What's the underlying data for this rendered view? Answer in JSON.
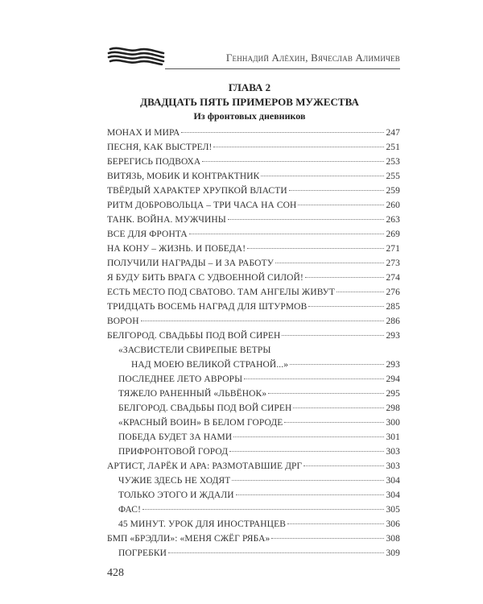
{
  "header": {
    "running_head": "Геннадий Алёхин, Вячеслав Алимичев",
    "logo_icon": "st-george-ribbon-icon"
  },
  "chapter": {
    "number": "ГЛАВА 2",
    "title": "ДВАДЦАТЬ ПЯТЬ ПРИМЕРОВ МУЖЕСТВА",
    "subtitle": "Из фронтовых дневников"
  },
  "toc": [
    {
      "title": "МОНАХ И МИРА",
      "page": "247",
      "level": 0
    },
    {
      "title": "ПЕСНЯ, КАК ВЫСТРЕЛ!",
      "page": "251",
      "level": 0
    },
    {
      "title": "БЕРЕГИСЬ ПОДВОХА",
      "page": "253",
      "level": 0
    },
    {
      "title": "ВИТЯЗЬ, МОБИК И КОНТРАКТНИК",
      "page": "255",
      "level": 0
    },
    {
      "title": "ТВЁРДЫЙ ХАРАКТЕР ХРУПКОЙ ВЛАСТИ",
      "page": "259",
      "level": 0
    },
    {
      "title": "РИТМ ДОБРОВОЛЬЦА – ТРИ ЧАСА НА СОН",
      "page": "260",
      "level": 0
    },
    {
      "title": "ТАНК. ВОЙНА. МУЖЧИНЫ",
      "page": "263",
      "level": 0
    },
    {
      "title": "ВСЕ ДЛЯ ФРОНТА",
      "page": "269",
      "level": 0
    },
    {
      "title": "НА КОНУ – ЖИЗНЬ. И ПОБЕДА!",
      "page": "271",
      "level": 0
    },
    {
      "title": "ПОЛУЧИЛИ НАГРАДЫ – И ЗА РАБОТУ",
      "page": "273",
      "level": 0
    },
    {
      "title": "Я БУДУ БИТЬ ВРАГА С УДВОЕННОЙ СИЛОЙ!",
      "page": "274",
      "level": 0
    },
    {
      "title": "ЕСТЬ МЕСТО ПОД СВАТОВО. ТАМ АНГЕЛЫ ЖИВУТ",
      "page": "276",
      "level": 0
    },
    {
      "title": "ТРИДЦАТЬ ВОСЕМЬ НАГРАД ДЛЯ ШТУРМОВ",
      "page": "285",
      "level": 0
    },
    {
      "title": "ВОРОН",
      "page": "286",
      "level": 0
    },
    {
      "title": "БЕЛГОРОД. СВАДЬБЫ ПОД ВОЙ СИРЕН",
      "page": "293",
      "level": 0
    },
    {
      "title": "«ЗАСВИСТЕЛИ СВИРЕПЫЕ ВЕТРЫ",
      "page": "",
      "level": 1,
      "continued": true
    },
    {
      "title": "НАД МОЕЮ ВЕЛИКОЙ СТРАНОЙ...»",
      "page": "293",
      "level": 2
    },
    {
      "title": "ПОСЛЕДНЕЕ ЛЕТО АВРОРЫ",
      "page": "294",
      "level": 1
    },
    {
      "title": "ТЯЖЕЛО РАНЕННЫЙ «ЛЬВЁНОК»",
      "page": "295",
      "level": 1
    },
    {
      "title": "БЕЛГОРОД. СВАДЬБЫ ПОД ВОЙ СИРЕН",
      "page": "298",
      "level": 1
    },
    {
      "title": "«КРАСНЫЙ ВОИН» В БЕЛОМ ГОРОДЕ",
      "page": "300",
      "level": 1
    },
    {
      "title": "ПОБЕДА БУДЕТ ЗА НАМИ",
      "page": "301",
      "level": 1
    },
    {
      "title": "ПРИФРОНТОВОЙ ГОРОД",
      "page": "303",
      "level": 1
    },
    {
      "title": "АРТИСТ, ЛАРЁК И АРА: РАЗМОТАВШИЕ ДРГ",
      "page": "303",
      "level": 0
    },
    {
      "title": "ЧУЖИЕ ЗДЕСЬ НЕ ХОДЯТ",
      "page": "304",
      "level": 1
    },
    {
      "title": "ТОЛЬКО ЭТОГО И ЖДАЛИ",
      "page": "304",
      "level": 1
    },
    {
      "title": "ФАС!",
      "page": "305",
      "level": 1
    },
    {
      "title": "45 МИНУТ. УРОК ДЛЯ ИНОСТРАНЦЕВ",
      "page": "306",
      "level": 1
    },
    {
      "title": "БМП «БРЭДЛИ»: «МЕНЯ СЖЁГ РЯБА»",
      "page": "308",
      "level": 0
    },
    {
      "title": "ПОГРЕБКИ",
      "page": "309",
      "level": 1
    }
  ],
  "footer": {
    "page_number": "428"
  }
}
